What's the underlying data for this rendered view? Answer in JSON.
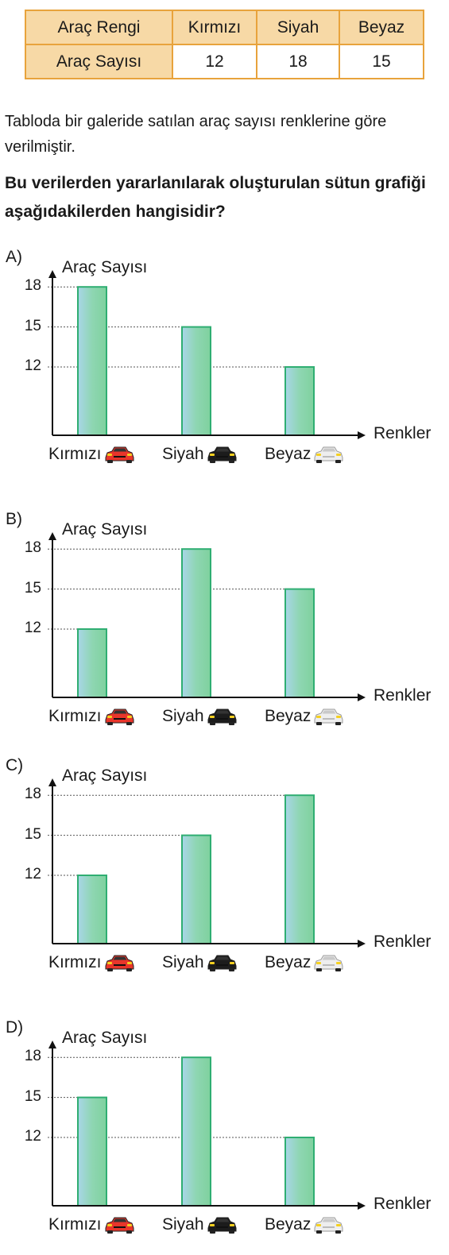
{
  "table": {
    "header_label": "Araç Rengi",
    "value_label": "Araç Sayısı",
    "categories": [
      "Kırmızı",
      "Siyah",
      "Beyaz"
    ],
    "values": [
      "12",
      "18",
      "15"
    ]
  },
  "question": {
    "text": "Tabloda bir galeride satılan araç sayısı renklerine göre verilmiştir.",
    "bold": "Bu verilerden yararlanılarak oluşturulan sütun grafiği aşağıdakilerden hangisidir?"
  },
  "car_colors": {
    "red": "#e8352b",
    "black": "#1c1c1c",
    "white": "#eeeeee"
  },
  "bar_color": "#8ed6b2",
  "axis": {
    "y_title": "Araç Sayısı",
    "x_title": "Renkler",
    "ticks": [
      "18",
      "15",
      "12"
    ]
  },
  "chart_data": [
    {
      "type": "bar",
      "option": "A)",
      "categories": [
        "Kırmızı",
        "Siyah",
        "Beyaz"
      ],
      "values": [
        18,
        15,
        12
      ],
      "xlabel": "Renkler",
      "ylabel": "Araç Sayısı",
      "yticks": [
        12,
        15,
        18
      ],
      "grid": false
    },
    {
      "type": "bar",
      "option": "B)",
      "categories": [
        "Kırmızı",
        "Siyah",
        "Beyaz"
      ],
      "values": [
        12,
        18,
        15
      ],
      "xlabel": "Renkler",
      "ylabel": "Araç Sayısı",
      "yticks": [
        12,
        15,
        18
      ],
      "grid": false
    },
    {
      "type": "bar",
      "option": "C)",
      "categories": [
        "Kırmızı",
        "Siyah",
        "Beyaz"
      ],
      "values": [
        12,
        15,
        18
      ],
      "xlabel": "Renkler",
      "ylabel": "Araç Sayısı",
      "yticks": [
        12,
        15,
        18
      ],
      "grid": false
    },
    {
      "type": "bar",
      "option": "D)",
      "categories": [
        "Kırmızı",
        "Siyah",
        "Beyaz"
      ],
      "values": [
        15,
        18,
        12
      ],
      "xlabel": "Renkler",
      "ylabel": "Araç Sayısı",
      "yticks": [
        12,
        15,
        18
      ],
      "grid": false
    }
  ]
}
